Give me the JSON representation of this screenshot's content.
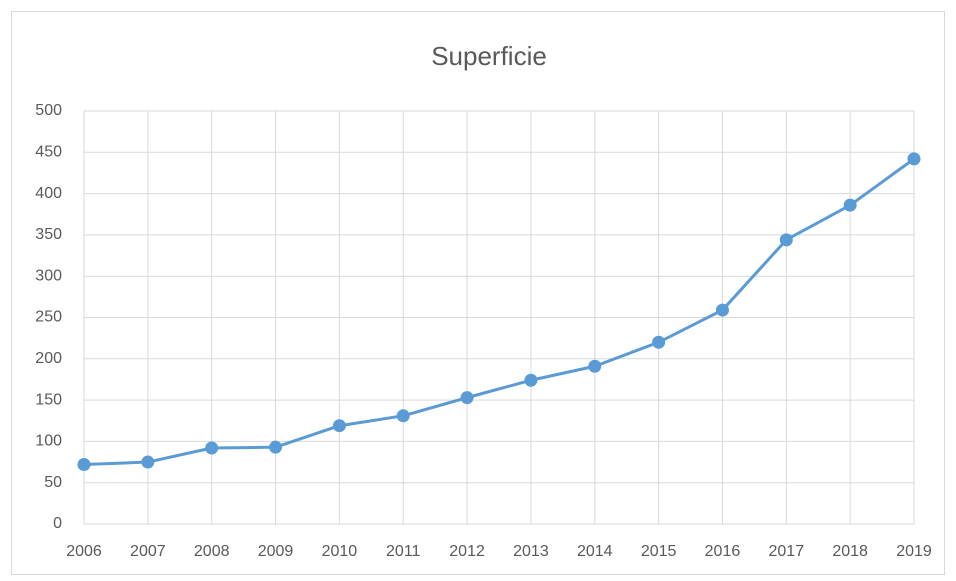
{
  "chart_data": {
    "type": "line",
    "title": "Superficie",
    "x": [
      2006,
      2007,
      2008,
      2009,
      2010,
      2011,
      2012,
      2013,
      2014,
      2015,
      2016,
      2017,
      2018,
      2019
    ],
    "values": [
      72,
      75,
      92,
      93,
      119,
      131,
      153,
      174,
      191,
      220,
      259,
      344,
      386,
      442
    ],
    "color": "#5b9bd5",
    "xlim": [
      2006,
      2019
    ],
    "xticks": [
      2006,
      2007,
      2008,
      2009,
      2010,
      2011,
      2012,
      2013,
      2014,
      2015,
      2016,
      2017,
      2018,
      2019
    ],
    "ylim": [
      0,
      500
    ],
    "yticks": [
      0,
      50,
      100,
      150,
      200,
      250,
      300,
      350,
      400,
      450,
      500
    ],
    "grid": true
  }
}
